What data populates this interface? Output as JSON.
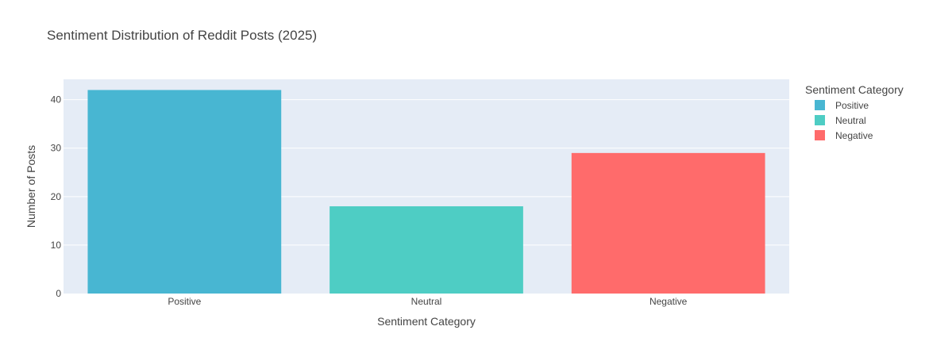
{
  "chart_data": {
    "type": "bar",
    "title": "Sentiment Distribution of Reddit Posts (2025)",
    "xlabel": "Sentiment Category",
    "ylabel": "Number of Posts",
    "categories": [
      "Positive",
      "Neutral",
      "Negative"
    ],
    "values": [
      42,
      18,
      29
    ],
    "colors": [
      "#48b6d2",
      "#4ecdc4",
      "#ff6b6b"
    ],
    "ylim": [
      0,
      44.2
    ],
    "yticks": [
      0,
      10,
      20,
      30,
      40
    ],
    "grid": true,
    "plot_background": "#e5ecf6",
    "legend": {
      "title": "Sentiment Category",
      "placement": "top-right",
      "entries": [
        "Positive",
        "Neutral",
        "Negative"
      ]
    }
  }
}
